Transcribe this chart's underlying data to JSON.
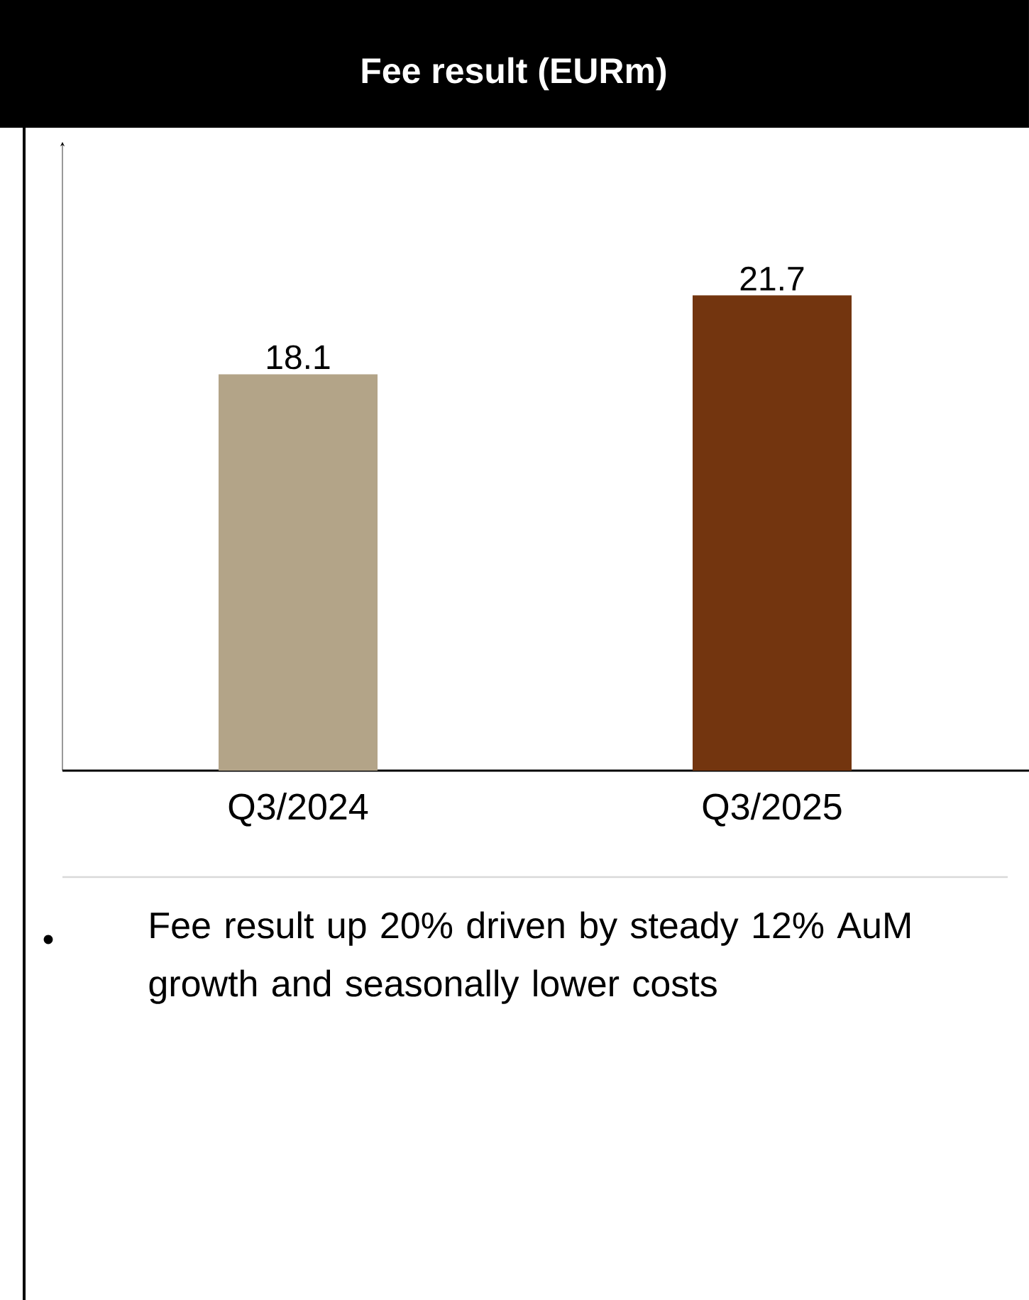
{
  "chart_data": {
    "type": "bar",
    "title": "Fee result (EURm)",
    "categories": [
      "Q3/2024",
      "Q3/2025"
    ],
    "values": [
      18.1,
      21.7
    ],
    "colors": [
      "#b3a488",
      "#73350f"
    ],
    "data_labels": true,
    "annotations": [
      "Fee result up 20% driven by steady 12% AuM growth and seasonally lower costs"
    ]
  }
}
